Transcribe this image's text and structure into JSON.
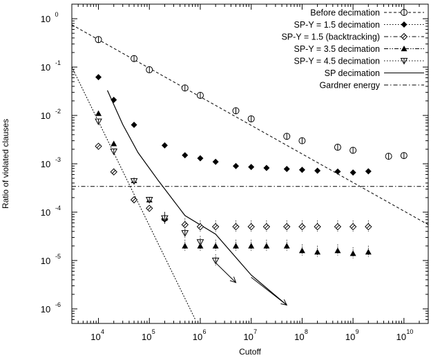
{
  "chart_data": {
    "type": "scatter",
    "xlabel": "Cutoff",
    "ylabel": "Ratio of violated clauses",
    "xscale": "log",
    "yscale": "log",
    "xlim": [
      3000,
      30000000000
    ],
    "ylim": [
      5e-07,
      2
    ],
    "grid": false,
    "legend_position": "top-right",
    "x_ticks": [
      {
        "base": "10",
        "exp": "4",
        "value": 10000
      },
      {
        "base": "10",
        "exp": "5",
        "value": 100000
      },
      {
        "base": "10",
        "exp": "6",
        "value": 1000000
      },
      {
        "base": "10",
        "exp": "7",
        "value": 10000000
      },
      {
        "base": "10",
        "exp": "8",
        "value": 100000000
      },
      {
        "base": "10",
        "exp": "9",
        "value": 1000000000
      },
      {
        "base": "10",
        "exp": "10",
        "value": 10000000000
      }
    ],
    "y_ticks": [
      {
        "base": "10",
        "exp": "0",
        "value": 1
      },
      {
        "base": "10",
        "exp": "-1",
        "value": 0.1
      },
      {
        "base": "10",
        "exp": "-2",
        "value": 0.01
      },
      {
        "base": "10",
        "exp": "-3",
        "value": 0.001
      },
      {
        "base": "10",
        "exp": "-4",
        "value": 0.0001
      },
      {
        "base": "10",
        "exp": "-5",
        "value": 1e-05
      },
      {
        "base": "10",
        "exp": "-6",
        "value": 1e-06
      }
    ],
    "series": [
      {
        "name": "Before decimation",
        "marker": "circle-open-cross",
        "line": "dashed",
        "points": [
          {
            "x": 10000,
            "y": 0.37
          },
          {
            "x": 50000,
            "y": 0.15
          },
          {
            "x": 100000,
            "y": 0.088
          },
          {
            "x": 500000,
            "y": 0.037
          },
          {
            "x": 1000000,
            "y": 0.026
          },
          {
            "x": 5000000,
            "y": 0.0125
          },
          {
            "x": 10000000,
            "y": 0.0085
          },
          {
            "x": 50000000,
            "y": 0.0037
          },
          {
            "x": 100000000,
            "y": 0.003
          },
          {
            "x": 500000000,
            "y": 0.0022
          },
          {
            "x": 1000000000,
            "y": 0.0019
          },
          {
            "x": 5000000000,
            "y": 0.00143
          },
          {
            "x": 10000000000,
            "y": 0.00148
          }
        ],
        "fit_line": [
          {
            "x": 3000,
            "y": 0.75
          },
          {
            "x": 30000000000,
            "y": 5.5e-05
          }
        ]
      },
      {
        "name": "SP-Y = 1.5 decimation",
        "marker": "diamond-filled",
        "line": "dotted",
        "points": [
          {
            "x": 10000,
            "y": 0.062
          },
          {
            "x": 20000,
            "y": 0.021
          },
          {
            "x": 50000,
            "y": 0.0064
          },
          {
            "x": 200000,
            "y": 0.0024
          },
          {
            "x": 500000,
            "y": 0.0015
          },
          {
            "x": 1000000,
            "y": 0.0013
          },
          {
            "x": 2000000,
            "y": 0.0011
          },
          {
            "x": 5000000,
            "y": 0.0009
          },
          {
            "x": 10000000,
            "y": 0.00086
          },
          {
            "x": 20000000,
            "y": 0.00082
          },
          {
            "x": 50000000,
            "y": 0.00078
          },
          {
            "x": 100000000,
            "y": 0.00075
          },
          {
            "x": 200000000,
            "y": 0.00072
          },
          {
            "x": 500000000,
            "y": 0.00069
          },
          {
            "x": 1000000000,
            "y": 0.00066
          },
          {
            "x": 2000000000,
            "y": 0.0007
          }
        ]
      },
      {
        "name": "SP-Y = 1.5 (backtracking)",
        "marker": "diamond-open-cross",
        "line": "dashdot",
        "points": [
          {
            "x": 10000,
            "y": 0.0023
          },
          {
            "x": 20000,
            "y": 0.00068
          },
          {
            "x": 50000,
            "y": 0.00018
          },
          {
            "x": 100000,
            "y": 0.00012
          },
          {
            "x": 200000,
            "y": 7.2e-05
          },
          {
            "x": 500000,
            "y": 5.5e-05
          },
          {
            "x": 1000000,
            "y": 5e-05
          },
          {
            "x": 2000000,
            "y": 5e-05
          },
          {
            "x": 5000000,
            "y": 5e-05
          },
          {
            "x": 10000000,
            "y": 5e-05
          },
          {
            "x": 20000000,
            "y": 5e-05
          },
          {
            "x": 50000000,
            "y": 5e-05
          },
          {
            "x": 100000000,
            "y": 5e-05
          },
          {
            "x": 200000000,
            "y": 5e-05
          },
          {
            "x": 500000000,
            "y": 5e-05
          },
          {
            "x": 1000000000,
            "y": 5e-05
          },
          {
            "x": 2000000000,
            "y": 5e-05
          }
        ]
      },
      {
        "name": "SP-Y = 3.5 decimation",
        "marker": "triangle-filled",
        "line": "dashdotdot",
        "points": [
          {
            "x": 10000,
            "y": 0.011
          },
          {
            "x": 20000,
            "y": 0.0026
          },
          {
            "x": 50000,
            "y": 0.00045
          },
          {
            "x": 100000,
            "y": 0.00018
          },
          {
            "x": 200000,
            "y": 7.5e-05
          },
          {
            "x": 500000,
            "y": 2e-05
          },
          {
            "x": 1000000,
            "y": 2e-05
          },
          {
            "x": 2000000,
            "y": 2e-05
          },
          {
            "x": 5000000,
            "y": 2e-05
          },
          {
            "x": 10000000,
            "y": 2e-05
          },
          {
            "x": 20000000,
            "y": 2e-05
          },
          {
            "x": 50000000,
            "y": 2e-05
          },
          {
            "x": 100000000,
            "y": 1.6e-05
          },
          {
            "x": 200000000,
            "y": 1.5e-05
          },
          {
            "x": 500000000,
            "y": 1.6e-05
          },
          {
            "x": 1000000000,
            "y": 1.4e-05
          },
          {
            "x": 2000000000,
            "y": 1.5e-05
          }
        ]
      },
      {
        "name": "SP-Y = 4.5 decimation",
        "marker": "triangle-down-open",
        "line": "dotted",
        "points": [
          {
            "x": 10000,
            "y": 0.0075
          },
          {
            "x": 20000,
            "y": 0.0018
          },
          {
            "x": 50000,
            "y": 0.00044
          },
          {
            "x": 100000,
            "y": 0.00018
          },
          {
            "x": 200000,
            "y": 7.5e-05
          },
          {
            "x": 500000,
            "y": 3.7e-05
          },
          {
            "x": 1000000,
            "y": 2.4e-05
          },
          {
            "x": 2000000,
            "y": 1e-05
          }
        ]
      },
      {
        "name": "SP decimation",
        "line": "solid",
        "points": [
          {
            "x": 15000,
            "y": 0.033
          },
          {
            "x": 30000,
            "y": 0.0065
          },
          {
            "x": 60000,
            "y": 0.0017
          },
          {
            "x": 150000,
            "y": 0.00045
          },
          {
            "x": 500000,
            "y": 8.5e-05
          },
          {
            "x": 2000000,
            "y": 3.5e-05
          },
          {
            "x": 10000000,
            "y": 5e-06
          },
          {
            "x": 50000000,
            "y": 1.2e-06
          }
        ],
        "arrows": [
          {
            "from": {
              "x": 2000000,
              "y": 9e-06
            },
            "to": {
              "x": 5000000,
              "y": 3.5e-06
            }
          },
          {
            "from": {
              "x": 10000000,
              "y": 4.5e-06
            },
            "to": {
              "x": 50000000,
              "y": 1.2e-06
            }
          }
        ]
      },
      {
        "name": "Gardner energy",
        "line": "dashdot",
        "constant_y": 0.00034
      }
    ],
    "extra_lines": [
      {
        "style": "dashed-fine",
        "points": [
          {
            "x": 3000,
            "y": 0.1
          },
          {
            "x": 800000,
            "y": 6e-07
          }
        ]
      }
    ]
  }
}
